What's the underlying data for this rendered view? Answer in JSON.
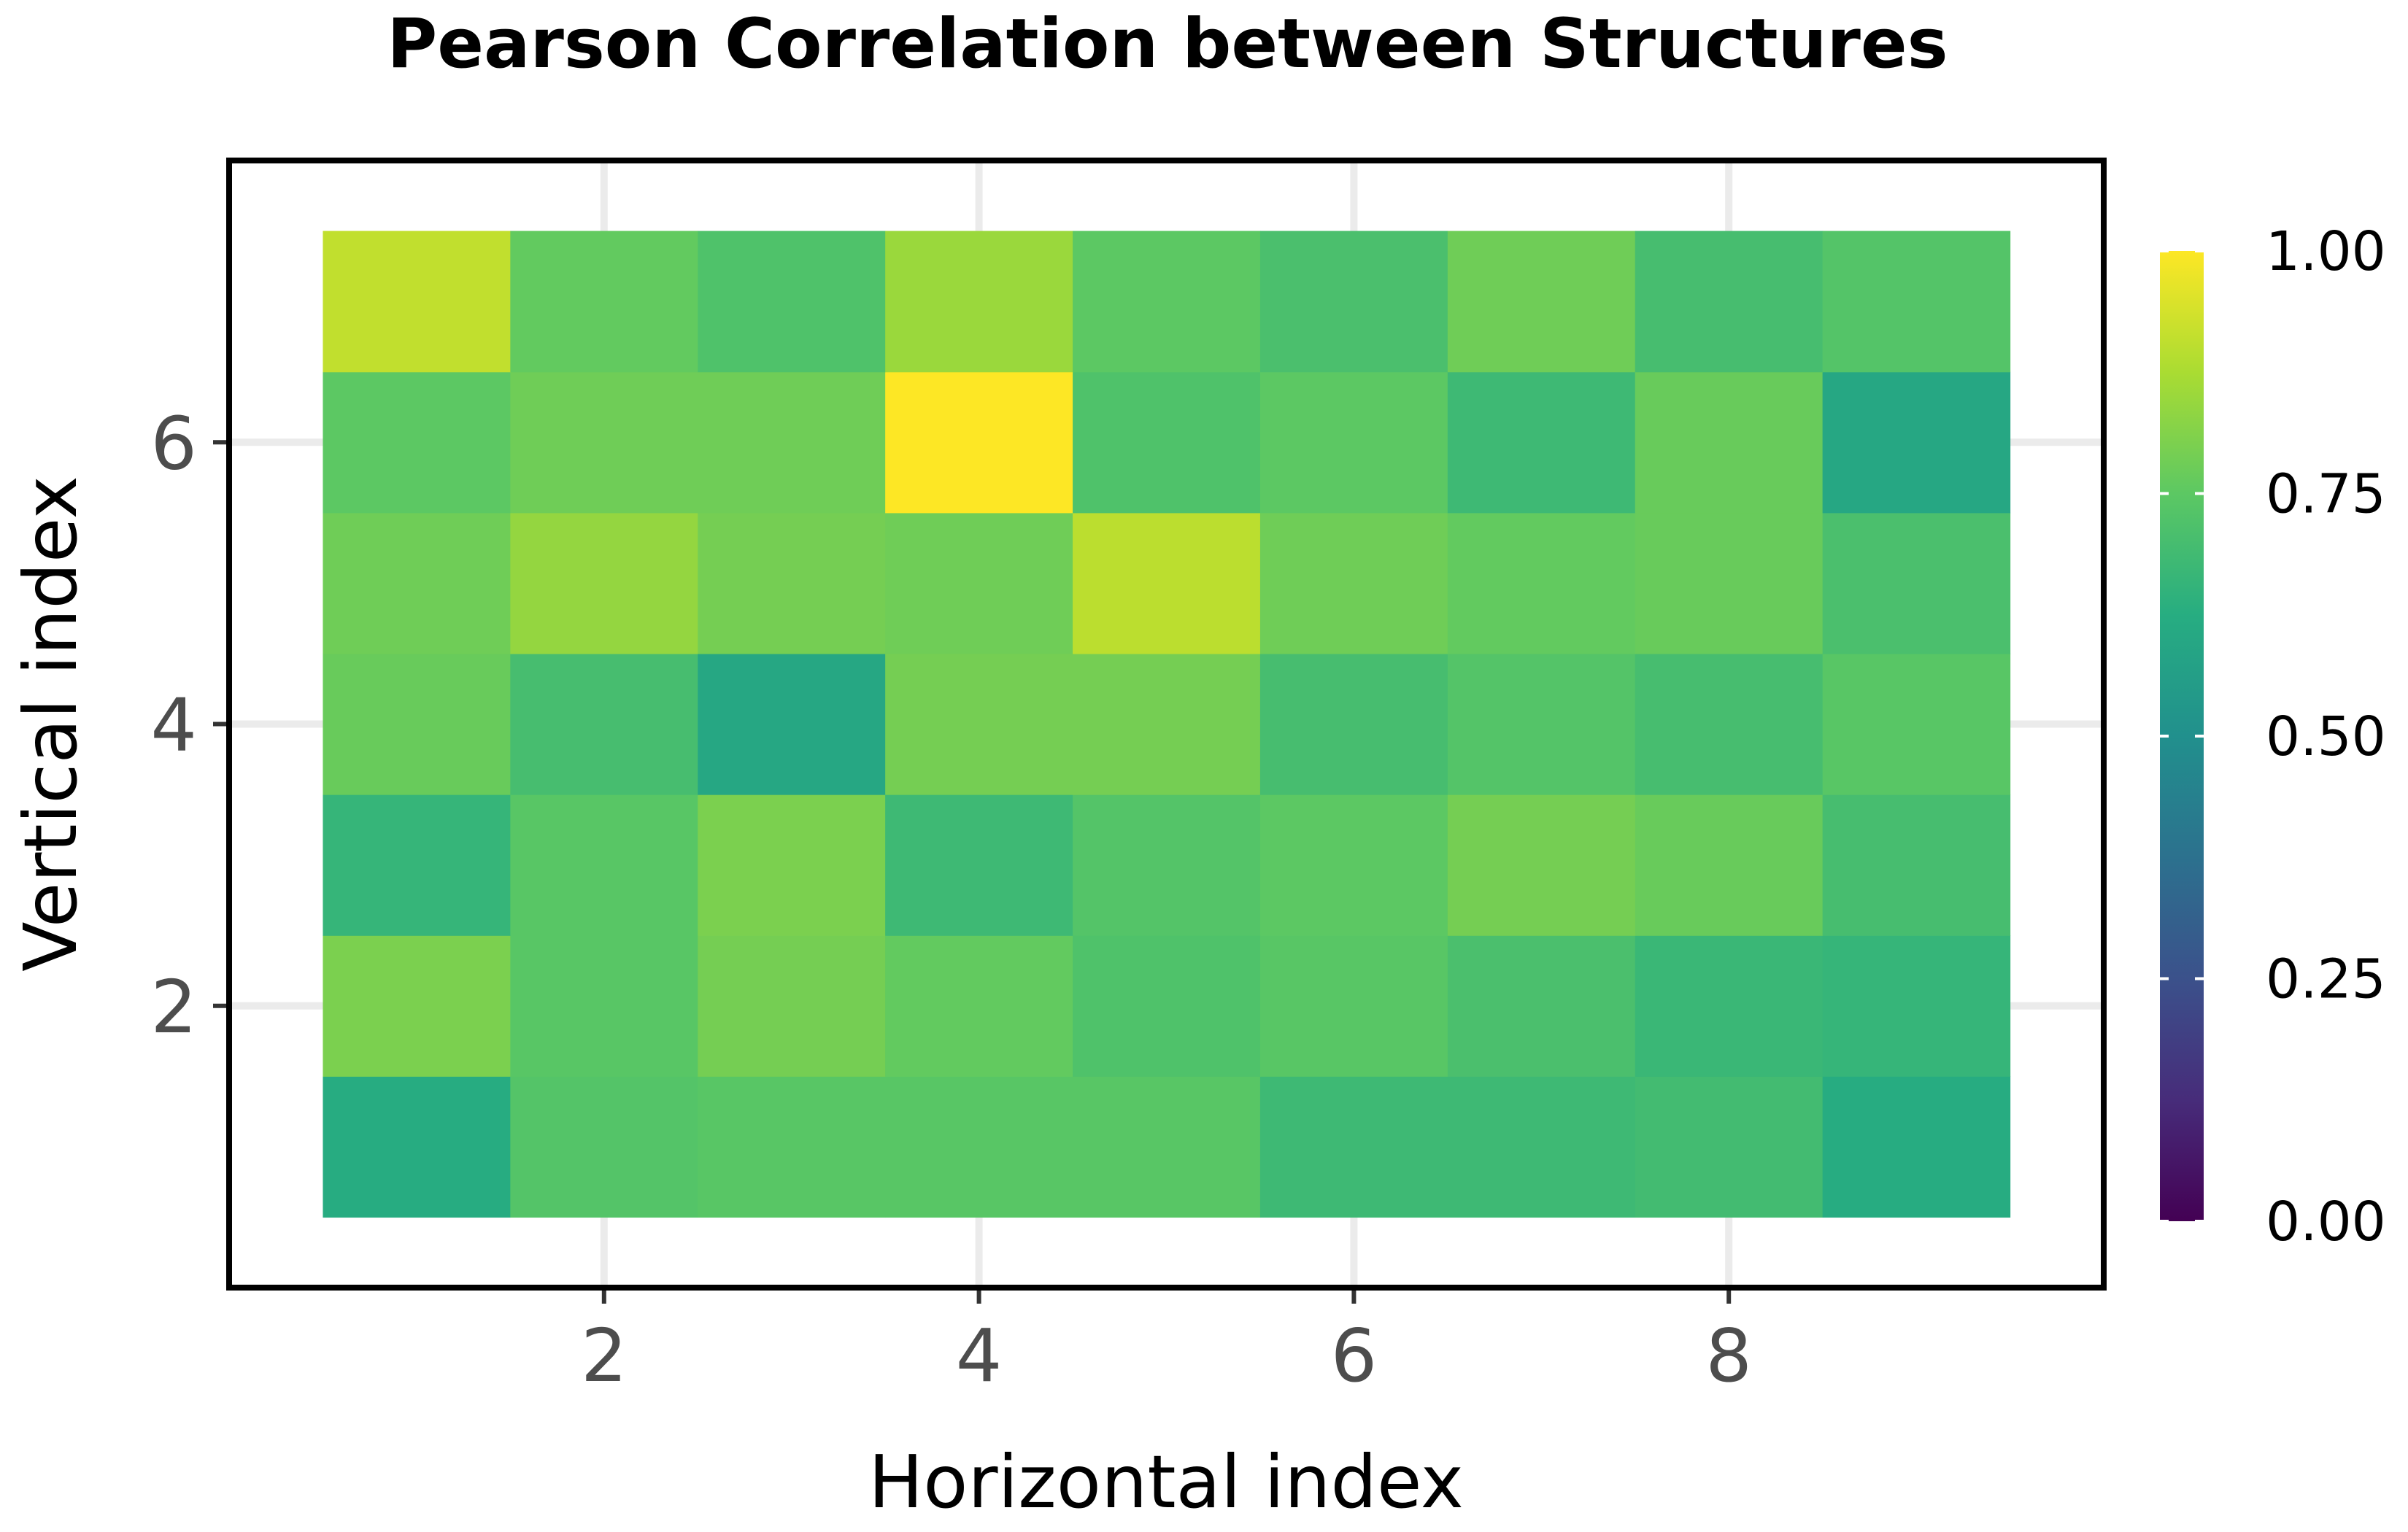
{
  "chart_data": {
    "type": "heatmap",
    "title": "Pearson Correlation between Structures",
    "xlabel": "Horizontal index",
    "ylabel": "Vertical index",
    "x": [
      1,
      2,
      3,
      4,
      5,
      6,
      7,
      8,
      9
    ],
    "y": [
      1,
      2,
      3,
      4,
      5,
      6,
      7
    ],
    "xlim": [
      0.5,
      9.5
    ],
    "ylim": [
      0.5,
      7.5
    ],
    "xticks": [
      2,
      4,
      6,
      8
    ],
    "yticks": [
      2,
      4,
      6
    ],
    "grid": true,
    "colormap": "viridis",
    "colorbar": {
      "min": 0,
      "max": 1,
      "ticks": [
        0,
        0.25,
        0.5,
        0.75,
        1
      ],
      "tick_labels": [
        "0.00",
        "0.25",
        "0.50",
        "0.75",
        "1.00"
      ],
      "position": "right"
    },
    "values": [
      [
        0.62,
        0.73,
        0.74,
        0.74,
        0.74,
        0.68,
        0.68,
        0.69,
        0.62
      ],
      [
        0.8,
        0.74,
        0.79,
        0.76,
        0.72,
        0.74,
        0.71,
        0.67,
        0.66
      ],
      [
        0.66,
        0.74,
        0.8,
        0.68,
        0.73,
        0.75,
        0.79,
        0.77,
        0.7
      ],
      [
        0.77,
        0.7,
        0.6,
        0.79,
        0.79,
        0.7,
        0.73,
        0.7,
        0.74
      ],
      [
        0.78,
        0.84,
        0.79,
        0.78,
        0.9,
        0.78,
        0.76,
        0.77,
        0.71
      ],
      [
        0.75,
        0.78,
        0.78,
        1.0,
        0.72,
        0.75,
        0.68,
        0.77,
        0.6
      ],
      [
        0.91,
        0.76,
        0.72,
        0.85,
        0.75,
        0.71,
        0.78,
        0.7,
        0.73
      ]
    ]
  }
}
